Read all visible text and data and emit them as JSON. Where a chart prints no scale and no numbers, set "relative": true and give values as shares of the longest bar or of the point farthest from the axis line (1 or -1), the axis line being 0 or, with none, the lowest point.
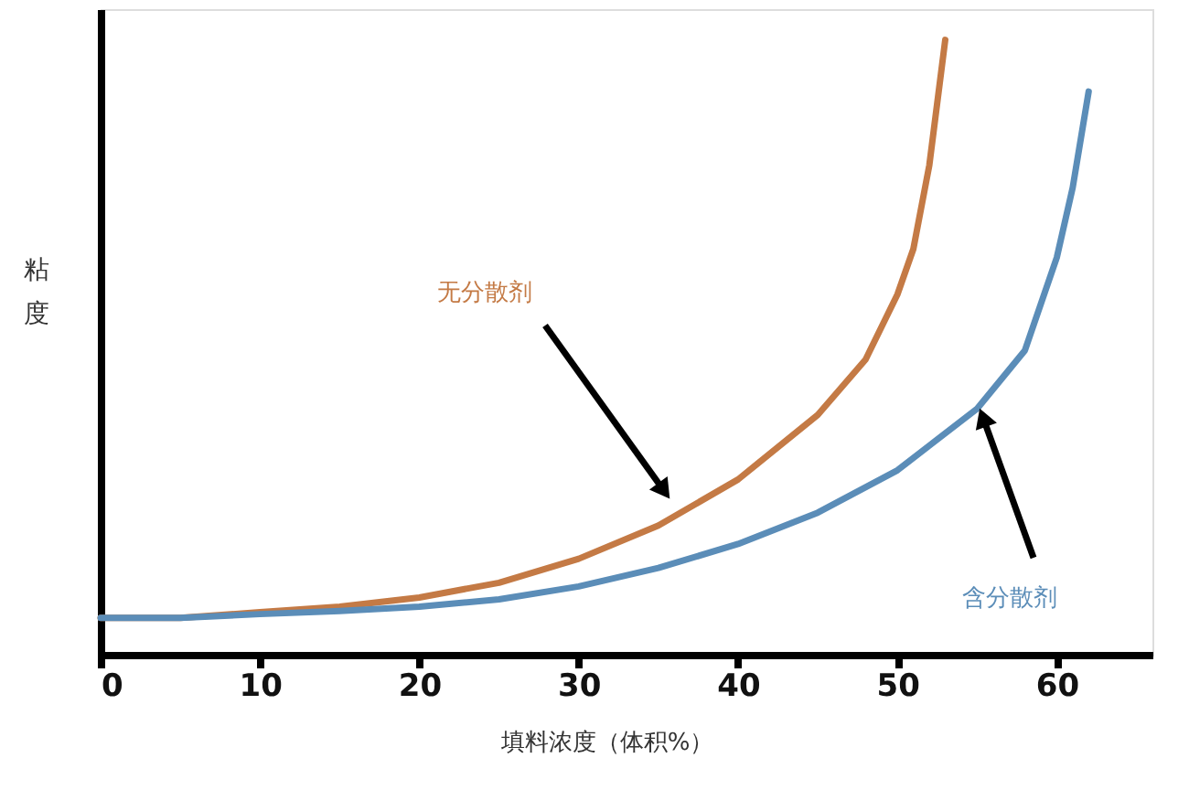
{
  "chart_data": {
    "type": "line",
    "xlabel": "填料浓度（体积%）",
    "ylabel": "粘度",
    "relative": true,
    "xlim": [
      0,
      66
    ],
    "xticks": [
      0,
      10,
      20,
      30,
      40,
      50,
      60
    ],
    "grid": false,
    "marker": "none",
    "line_style": "solid",
    "series": [
      {
        "name": "无分散剂",
        "color": "#c47a45",
        "x": [
          0,
          5,
          10,
          15,
          20,
          25,
          30,
          35,
          40,
          45,
          48,
          50,
          51,
          52,
          53
        ],
        "values": [
          0.06,
          0.06,
          0.069,
          0.078,
          0.093,
          0.117,
          0.156,
          0.21,
          0.285,
          0.39,
          0.48,
          0.586,
          0.66,
          0.796,
          1
        ]
      },
      {
        "name": "含分散剂",
        "color": "#5b8db8",
        "x": [
          0,
          5,
          10,
          15,
          20,
          25,
          30,
          35,
          40,
          45,
          50,
          55,
          58,
          60,
          61,
          62
        ],
        "values": [
          0.06,
          0.06,
          0.066,
          0.071,
          0.078,
          0.09,
          0.111,
          0.141,
          0.18,
          0.231,
          0.3,
          0.4,
          0.495,
          0.646,
          0.76,
          0.916
        ]
      }
    ]
  }
}
